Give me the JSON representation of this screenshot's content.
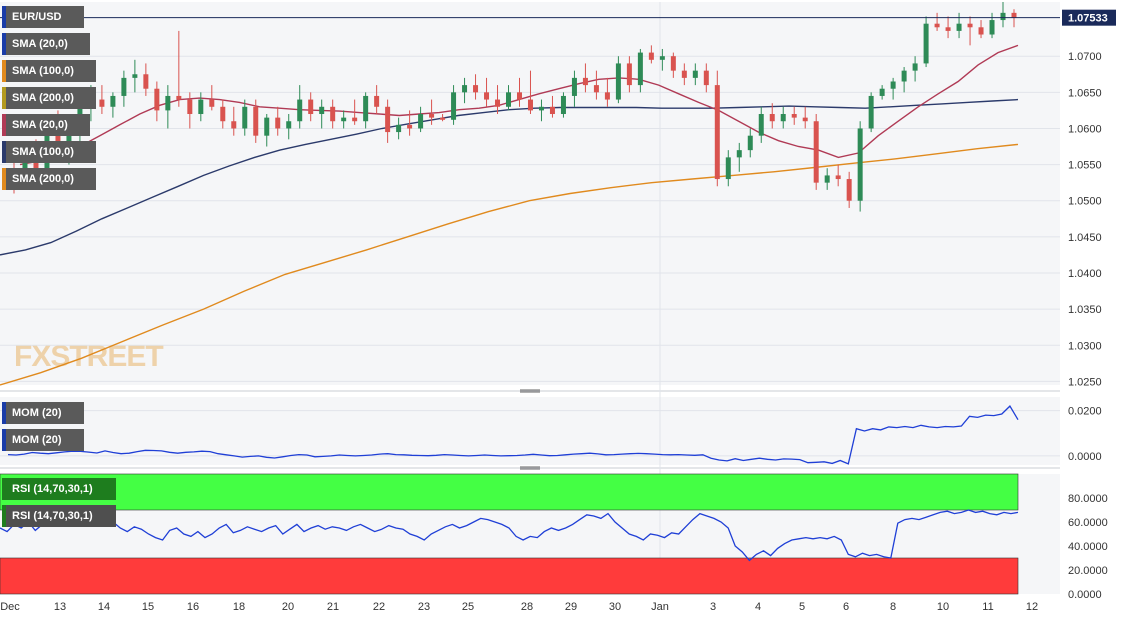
{
  "symbol": "EUR/USD",
  "last_price_label": "1.07533",
  "watermark": "FXSTREET",
  "indicator_labels": {
    "sma20": "SMA (20,0)",
    "sma100": "SMA (100,0)",
    "sma200": "SMA (200,0)",
    "mom": "MOM (20)",
    "rsi": "RSI (14,70,30,1)"
  },
  "colors": {
    "up_candle": "#2e8b57",
    "down_candle": "#d9534f",
    "sma20": "#b03a55",
    "sma100": "#2b3a6b",
    "sma200": "#e08a1e",
    "mom_line": "#1f3fd6",
    "rsi_line": "#1f3fd6",
    "rsi_overbought_zone": "#44ff44",
    "rsi_oversold_zone": "#ff3b3b",
    "last_price_badge": "#1a2a5a"
  },
  "chart_data": [
    {
      "type": "candlestick",
      "title": "EUR/USD",
      "y_ticks": [
        "1.0700",
        "1.0650",
        "1.0600",
        "1.0550",
        "1.0500",
        "1.0450",
        "1.0400",
        "1.0350",
        "1.0300",
        "1.0250"
      ],
      "ylim": [
        1.0245,
        1.0775
      ],
      "last_price": 1.07533,
      "x_ticks": [
        "Dec",
        "13",
        "14",
        "15",
        "16",
        "18",
        "20",
        "21",
        "22",
        "23",
        "25",
        "28",
        "29",
        "30",
        "Jan",
        "3",
        "4",
        "5",
        "6",
        "8",
        "10",
        "11",
        "12"
      ],
      "ohlc": [
        [
          1.054,
          1.056,
          1.051,
          1.053
        ],
        [
          1.053,
          1.057,
          1.052,
          1.0555
        ],
        [
          1.0555,
          1.0585,
          1.054,
          1.0545
        ],
        [
          1.0545,
          1.06,
          1.0535,
          1.059
        ],
        [
          1.059,
          1.0625,
          1.056,
          1.057
        ],
        [
          1.057,
          1.06,
          1.055,
          1.0595
        ],
        [
          1.0595,
          1.064,
          1.058,
          1.063
        ],
        [
          1.063,
          1.066,
          1.061,
          1.064
        ],
        [
          1.064,
          1.066,
          1.062,
          1.063
        ],
        [
          1.063,
          1.065,
          1.0615,
          1.0645
        ],
        [
          1.0645,
          1.068,
          1.063,
          1.067
        ],
        [
          1.067,
          1.0695,
          1.065,
          1.0675
        ],
        [
          1.0675,
          1.069,
          1.0645,
          1.0655
        ],
        [
          1.0655,
          1.0665,
          1.061,
          1.0625
        ],
        [
          1.0625,
          1.066,
          1.06,
          1.0645
        ],
        [
          1.0645,
          1.0735,
          1.063,
          1.064
        ],
        [
          1.064,
          1.065,
          1.06,
          1.062
        ],
        [
          1.062,
          1.065,
          1.061,
          1.064
        ],
        [
          1.064,
          1.066,
          1.0625,
          1.063
        ],
        [
          1.063,
          1.064,
          1.06,
          1.061
        ],
        [
          1.061,
          1.063,
          1.059,
          1.06
        ],
        [
          1.06,
          1.064,
          1.059,
          1.063
        ],
        [
          1.063,
          1.064,
          1.058,
          1.059
        ],
        [
          1.059,
          1.062,
          1.0575,
          1.0615
        ],
        [
          1.0615,
          1.063,
          1.059,
          1.06
        ],
        [
          1.06,
          1.062,
          1.0585,
          1.061
        ],
        [
          1.061,
          1.066,
          1.06,
          1.064
        ],
        [
          1.064,
          1.065,
          1.061,
          1.062
        ],
        [
          1.062,
          1.064,
          1.06,
          1.063
        ],
        [
          1.063,
          1.064,
          1.06,
          1.061
        ],
        [
          1.061,
          1.0625,
          1.06,
          1.0615
        ],
        [
          1.0615,
          1.064,
          1.0605,
          1.061
        ],
        [
          1.061,
          1.065,
          1.06,
          1.0645
        ],
        [
          1.0645,
          1.066,
          1.062,
          1.063
        ],
        [
          1.063,
          1.064,
          1.058,
          1.0595
        ],
        [
          1.0595,
          1.0615,
          1.0585,
          1.0605
        ],
        [
          1.0605,
          1.0625,
          1.059,
          1.06
        ],
        [
          1.06,
          1.063,
          1.0595,
          1.062
        ],
        [
          1.062,
          1.064,
          1.0605,
          1.0615
        ],
        [
          1.0615,
          1.062,
          1.061,
          1.0612
        ],
        [
          1.0612,
          1.066,
          1.0605,
          1.065
        ],
        [
          1.065,
          1.067,
          1.0635,
          1.066
        ],
        [
          1.066,
          1.0675,
          1.064,
          1.065
        ],
        [
          1.065,
          1.067,
          1.063,
          1.064
        ],
        [
          1.064,
          1.066,
          1.062,
          1.063
        ],
        [
          1.063,
          1.066,
          1.0625,
          1.065
        ],
        [
          1.065,
          1.067,
          1.063,
          1.064
        ],
        [
          1.064,
          1.068,
          1.062,
          1.0625
        ],
        [
          1.0625,
          1.064,
          1.061,
          1.063
        ],
        [
          1.063,
          1.0645,
          1.0615,
          1.062
        ],
        [
          1.062,
          1.065,
          1.0615,
          1.0645
        ],
        [
          1.0645,
          1.068,
          1.063,
          1.067
        ],
        [
          1.067,
          1.069,
          1.065,
          1.066
        ],
        [
          1.066,
          1.068,
          1.064,
          1.065
        ],
        [
          1.065,
          1.067,
          1.063,
          1.064
        ],
        [
          1.064,
          1.07,
          1.0635,
          1.069
        ],
        [
          1.069,
          1.07,
          1.065,
          1.066
        ],
        [
          1.066,
          1.071,
          1.065,
          1.0705
        ],
        [
          1.0705,
          1.0715,
          1.069,
          1.0695
        ],
        [
          1.0695,
          1.071,
          1.068,
          1.07
        ],
        [
          1.07,
          1.0705,
          1.067,
          1.068
        ],
        [
          1.068,
          1.069,
          1.066,
          1.067
        ],
        [
          1.067,
          1.069,
          1.066,
          1.068
        ],
        [
          1.068,
          1.069,
          1.065,
          1.066
        ],
        [
          1.066,
          1.068,
          1.052,
          1.053
        ],
        [
          1.053,
          1.057,
          1.052,
          1.056
        ],
        [
          1.056,
          1.058,
          1.054,
          1.057
        ],
        [
          1.057,
          1.06,
          1.056,
          1.059
        ],
        [
          1.059,
          1.063,
          1.058,
          1.062
        ],
        [
          1.062,
          1.0635,
          1.06,
          1.061
        ],
        [
          1.061,
          1.063,
          1.06,
          1.062
        ],
        [
          1.062,
          1.063,
          1.0605,
          1.0615
        ],
        [
          1.0615,
          1.063,
          1.06,
          1.061
        ],
        [
          1.061,
          1.062,
          1.0515,
          1.0525
        ],
        [
          1.0525,
          1.0545,
          1.0515,
          1.0535
        ],
        [
          1.0535,
          1.055,
          1.052,
          1.053
        ],
        [
          1.053,
          1.054,
          1.049,
          1.05
        ],
        [
          1.05,
          1.061,
          1.0485,
          1.06
        ],
        [
          1.06,
          1.065,
          1.0595,
          1.0645
        ],
        [
          1.0645,
          1.066,
          1.064,
          1.0655
        ],
        [
          1.0655,
          1.067,
          1.064,
          1.0665
        ],
        [
          1.0665,
          1.0685,
          1.065,
          1.068
        ],
        [
          1.068,
          1.07,
          1.0665,
          1.069
        ],
        [
          1.069,
          1.0755,
          1.0685,
          1.0745
        ],
        [
          1.0745,
          1.076,
          1.0735,
          1.074
        ],
        [
          1.074,
          1.0755,
          1.0725,
          1.0735
        ],
        [
          1.0735,
          1.076,
          1.0725,
          1.0745
        ],
        [
          1.0745,
          1.0755,
          1.0715,
          1.074
        ],
        [
          1.074,
          1.075,
          1.0725,
          1.073
        ],
        [
          1.073,
          1.076,
          1.0725,
          1.075
        ],
        [
          1.075,
          1.0775,
          1.074,
          1.076
        ],
        [
          1.076,
          1.0765,
          1.074,
          1.0753
        ]
      ],
      "sma20": [
        1.055,
        1.0555,
        1.0565,
        1.0575,
        1.059,
        1.0605,
        1.062,
        1.0632,
        1.064,
        1.0642,
        1.064,
        1.0636,
        1.063,
        1.0628,
        1.0626,
        1.0625,
        1.0624,
        1.0622,
        1.062,
        1.0618,
        1.062,
        1.0622,
        1.0626,
        1.0628,
        1.0632,
        1.064,
        1.0648,
        1.0655,
        1.0662,
        1.0668,
        1.067,
        1.0668,
        1.066,
        1.0648,
        1.0636,
        1.0625,
        1.061,
        1.0595,
        1.0583,
        1.0575,
        1.057,
        1.056,
        1.0566,
        1.059,
        1.061,
        1.063,
        1.0648,
        1.0665,
        1.0688,
        1.0705,
        1.0715
      ],
      "sma100": [
        1.0425,
        1.0432,
        1.0442,
        1.0458,
        1.0475,
        1.049,
        1.0505,
        1.052,
        1.0535,
        1.0548,
        1.056,
        1.057,
        1.0578,
        1.0585,
        1.0592,
        1.06,
        1.0606,
        1.0612,
        1.0618,
        1.0622,
        1.0626,
        1.0628,
        1.0629,
        1.0629,
        1.0629,
        1.0629,
        1.0628,
        1.0628,
        1.0628,
        1.0629,
        1.063,
        1.0631,
        1.063,
        1.0629,
        1.0628,
        1.063,
        1.0632,
        1.0634,
        1.0636,
        1.0638,
        1.064
      ],
      "sma200": [
        1.0245,
        1.0262,
        1.0282,
        1.0305,
        1.0328,
        1.035,
        1.0375,
        1.0398,
        1.0415,
        1.0432,
        1.045,
        1.0468,
        1.0485,
        1.05,
        1.051,
        1.0518,
        1.0525,
        1.053,
        1.0535,
        1.054,
        1.0546,
        1.0552,
        1.0558,
        1.0565,
        1.0572,
        1.0578
      ]
    },
    {
      "type": "line",
      "title": "MOM (20)",
      "y_ticks": [
        "0.0200",
        "0.0000"
      ],
      "ylim": [
        -0.004,
        0.026
      ],
      "values": [
        0.0006,
        0.0004,
        0.0008,
        0.0015,
        0.0012,
        0.001,
        0.0014,
        0.0018,
        0.0021,
        0.002,
        0.0017,
        0.0013,
        0.0022,
        0.0015,
        0.001,
        0.0012,
        0.0019,
        0.0025,
        0.0024,
        0.0022,
        0.0016,
        0.0012,
        0.0016,
        0.0018,
        0.0021,
        0.0019,
        0.001,
        0.0005,
        0.0,
        -0.0005,
        -0.0002,
        0.0,
        -0.0006,
        -0.0009,
        -0.0004,
        0.0002,
        0.0006,
        0.0004,
        -0.0004,
        -0.0002,
        0.0,
        0.0004,
        0.0002,
        0.0,
        0.0002,
        0.0004,
        0.0008,
        0.001,
        0.0006,
        0.0005,
        0.0003,
        0.0002,
        0.0001,
        0.0003,
        0.0006,
        0.0004,
        0.0002,
        0.0,
        0.0002,
        0.0004,
        0.0002,
        0.0,
        0.0001,
        0.0002,
        0.0004,
        0.0007,
        0.0004,
        0.0001,
        0.0002,
        0.0005,
        0.0008,
        0.001,
        0.0012,
        0.0009,
        0.0005,
        0.0006,
        0.0008,
        0.001,
        0.0011,
        0.001,
        0.0008,
        0.0006,
        0.0005,
        0.0006,
        0.0004,
        0.0003,
        0.0005,
        -0.001,
        -0.0018,
        -0.0022,
        -0.0012,
        -0.002,
        -0.0015,
        -0.001,
        -0.0015,
        -0.0018,
        -0.0013,
        -0.0014,
        -0.0016,
        -0.003,
        -0.0028,
        -0.0026,
        -0.0033,
        -0.002,
        -0.0035,
        0.012,
        0.011,
        0.012,
        0.0115,
        0.0128,
        0.0125,
        0.013,
        0.0125,
        0.0135,
        0.0128,
        0.0125,
        0.013,
        0.0128,
        0.0132,
        0.0175,
        0.017,
        0.018,
        0.0178,
        0.0185,
        0.022,
        0.016
      ]
    },
    {
      "type": "line",
      "title": "RSI (14,70,30,1)",
      "y_ticks": [
        "80.0000",
        "60.0000",
        "40.0000",
        "20.0000",
        "0.0000"
      ],
      "ylim": [
        0,
        100
      ],
      "overbought": 70,
      "oversold": 30,
      "values": [
        55,
        52,
        58,
        55,
        60,
        53,
        58,
        63,
        65,
        67,
        70,
        68,
        62,
        66,
        63,
        58,
        60,
        55,
        52,
        56,
        54,
        50,
        47,
        45,
        53,
        55,
        50,
        48,
        52,
        47,
        50,
        55,
        58,
        51,
        53,
        56,
        54,
        52,
        55,
        57,
        50,
        54,
        58,
        52,
        55,
        57,
        54,
        56,
        55,
        53,
        56,
        58,
        55,
        52,
        54,
        57,
        55,
        54,
        50,
        48,
        45,
        50,
        53,
        56,
        58,
        55,
        57,
        60,
        63,
        62,
        60,
        58,
        55,
        48,
        45,
        48,
        47,
        52,
        55,
        53,
        55,
        58,
        62,
        66,
        65,
        63,
        67,
        60,
        55,
        50,
        48,
        45,
        50,
        49,
        47,
        51,
        50,
        56,
        62,
        67,
        65,
        63,
        60,
        55,
        40,
        35,
        28,
        33,
        36,
        32,
        38,
        42,
        45,
        46,
        47,
        46,
        47,
        46,
        48,
        45,
        33,
        31,
        34,
        32,
        33,
        31,
        30,
        59,
        62,
        63,
        62,
        64,
        66,
        68,
        69,
        67,
        68,
        70,
        68,
        69,
        67,
        66,
        68,
        67,
        68
      ]
    }
  ]
}
